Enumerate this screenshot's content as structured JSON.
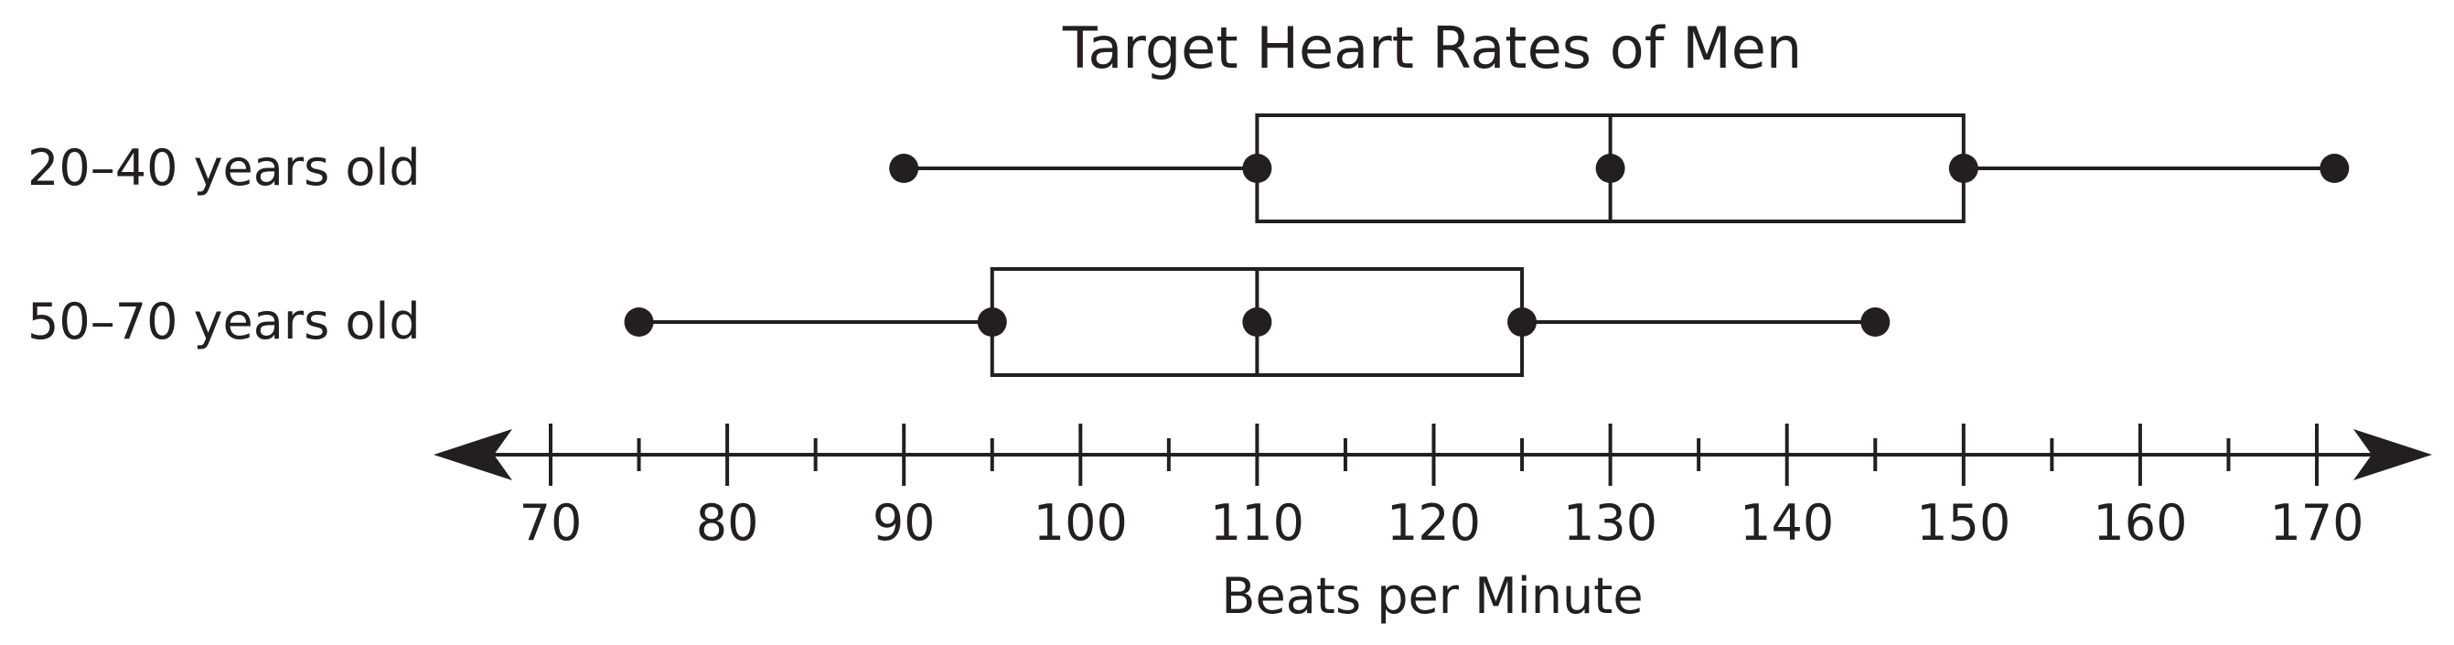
{
  "chart_data": {
    "type": "boxplot",
    "title": "Target Heart Rates of Men",
    "xlabel": "Beats per Minute",
    "ylabel": "",
    "xlim": [
      70,
      170
    ],
    "major_ticks": [
      70,
      80,
      90,
      100,
      110,
      120,
      130,
      140,
      150,
      160,
      170
    ],
    "minor_ticks": [
      75,
      85,
      95,
      105,
      115,
      125,
      135,
      145,
      155,
      165
    ],
    "categories": [
      "20–40 years old",
      "50–70 years old"
    ],
    "series": [
      {
        "name": "20–40 years old",
        "min": 90,
        "q1": 110,
        "median": 130,
        "q3": 150,
        "max": 171
      },
      {
        "name": "50–70 years old",
        "min": 75,
        "q1": 95,
        "median": 110,
        "q3": 125,
        "max": 145
      }
    ],
    "grid": false,
    "colors": {
      "ink": "#231f20",
      "background": "#ffffff"
    }
  }
}
